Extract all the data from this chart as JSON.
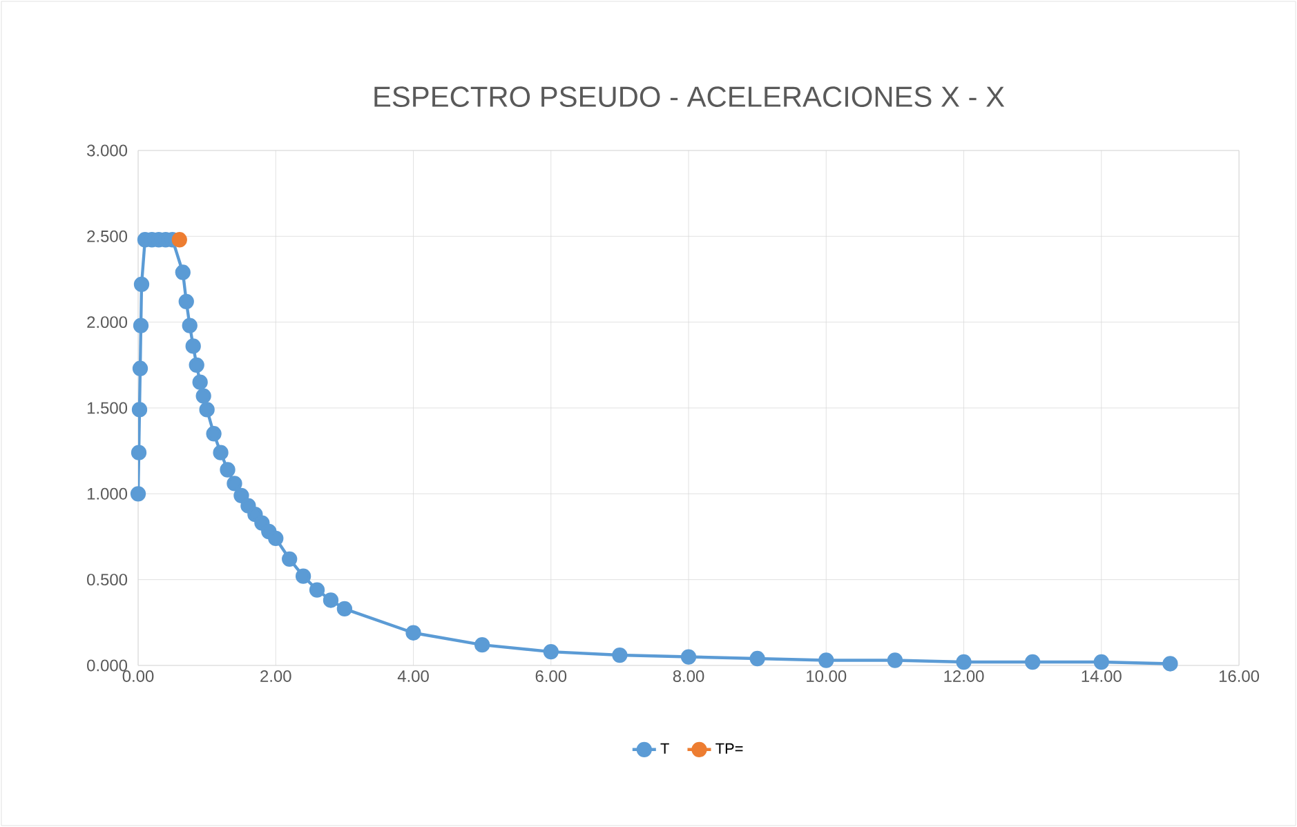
{
  "chart_data": {
    "type": "line",
    "title": "ESPECTRO PSEUDO - ACELERACIONES X - X",
    "xlim": [
      0,
      16
    ],
    "ylim": [
      0,
      3
    ],
    "xticks": [
      {
        "value": 0,
        "label": "0.00"
      },
      {
        "value": 2,
        "label": "2.00"
      },
      {
        "value": 4,
        "label": "4.00"
      },
      {
        "value": 6,
        "label": "6.00"
      },
      {
        "value": 8,
        "label": "8.00"
      },
      {
        "value": 10,
        "label": "10.00"
      },
      {
        "value": 12,
        "label": "12.00"
      },
      {
        "value": 14,
        "label": "14.00"
      },
      {
        "value": 16,
        "label": "16.00"
      }
    ],
    "yticks": [
      {
        "value": 0,
        "label": "0.000"
      },
      {
        "value": 0.5,
        "label": "0.500"
      },
      {
        "value": 1,
        "label": "1.000"
      },
      {
        "value": 1.5,
        "label": "1.500"
      },
      {
        "value": 2,
        "label": "2.000"
      },
      {
        "value": 2.5,
        "label": "2.500"
      },
      {
        "value": 3,
        "label": "3.000"
      }
    ],
    "grid": true,
    "legend": "bottom",
    "marker": "circle",
    "line_style": "solid",
    "series": [
      {
        "name": "T",
        "color": "#5b9bd5",
        "x": [
          0,
          0.01,
          0.02,
          0.03,
          0.04,
          0.05,
          0.1,
          0.2,
          0.3,
          0.4,
          0.5,
          0.6,
          0.65,
          0.7,
          0.75,
          0.8,
          0.85,
          0.9,
          0.95,
          1.0,
          1.1,
          1.2,
          1.3,
          1.4,
          1.5,
          1.6,
          1.7,
          1.8,
          1.9,
          2.0,
          2.2,
          2.4,
          2.6,
          2.8,
          3.0,
          4,
          5,
          6,
          7,
          8,
          9,
          10,
          11,
          12,
          13,
          14,
          15
        ],
        "values": [
          1.0,
          1.24,
          1.49,
          1.73,
          1.98,
          2.22,
          2.48,
          2.48,
          2.48,
          2.48,
          2.48,
          null,
          2.29,
          2.12,
          1.98,
          1.86,
          1.75,
          1.65,
          1.57,
          1.49,
          1.35,
          1.24,
          1.14,
          1.06,
          0.99,
          0.93,
          0.88,
          0.83,
          0.78,
          0.74,
          0.62,
          0.52,
          0.44,
          0.38,
          0.33,
          0.19,
          0.12,
          0.08,
          0.06,
          0.05,
          0.04,
          0.03,
          0.03,
          0.02,
          0.02,
          0.02,
          0.01
        ]
      },
      {
        "name": "TP=",
        "color": "#ed7d31",
        "x": [
          0.6
        ],
        "values": [
          2.48
        ]
      }
    ]
  }
}
